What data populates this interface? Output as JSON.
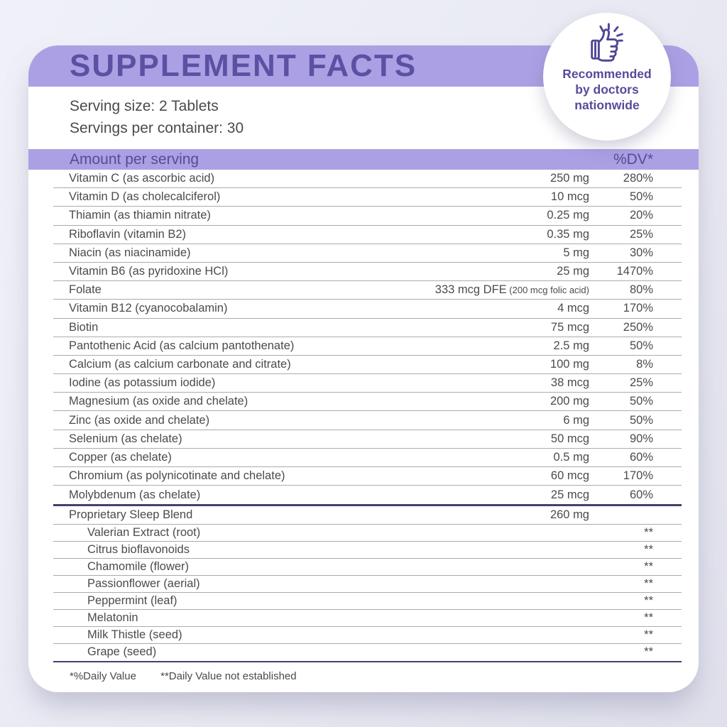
{
  "header": {
    "title": "SUPPLEMENT FACTS"
  },
  "badge": {
    "icon": "thumbs-up-icon",
    "lines": [
      "Recommended",
      "by doctors",
      "nationwide"
    ]
  },
  "serving": {
    "size_line": "Serving size: 2 Tablets",
    "per_container_line": "Servings per container: 30"
  },
  "table": {
    "header": {
      "amount_label": "Amount per serving",
      "dv_label": "%DV*"
    },
    "rows": [
      {
        "name": "Vitamin C (as ascorbic acid)",
        "amount": "250 mg",
        "dv": "280%"
      },
      {
        "name": "Vitamin D (as cholecalciferol)",
        "amount": "10 mcg",
        "dv": "50%"
      },
      {
        "name": "Thiamin (as thiamin nitrate)",
        "amount": "0.25 mg",
        "dv": "20%"
      },
      {
        "name": "Riboflavin (vitamin B2)",
        "amount": "0.35 mg",
        "dv": "25%"
      },
      {
        "name": "Niacin (as niacinamide)",
        "amount": "5 mg",
        "dv": "30%"
      },
      {
        "name": "Vitamin B6 (as pyridoxine HCl)",
        "amount": "25 mg",
        "dv": "1470%"
      },
      {
        "name": "Folate",
        "amount": "333 mcg DFE",
        "amount_note": " (200 mcg folic acid)",
        "dv": "80%"
      },
      {
        "name": "Vitamin B12 (cyanocobalamin)",
        "amount": "4 mcg",
        "dv": "170%"
      },
      {
        "name": "Biotin",
        "amount": "75 mcg",
        "dv": "250%"
      },
      {
        "name": "Pantothenic Acid (as calcium pantothenate)",
        "amount": "2.5 mg",
        "dv": "50%"
      },
      {
        "name": "Calcium (as calcium carbonate and citrate)",
        "amount": "100 mg",
        "dv": "8%"
      },
      {
        "name": "Iodine (as potassium iodide)",
        "amount": "38 mcg",
        "dv": "25%"
      },
      {
        "name": "Magnesium (as oxide and chelate)",
        "amount": "200 mg",
        "dv": "50%"
      },
      {
        "name": "Zinc (as oxide and chelate)",
        "amount": "6 mg",
        "dv": "50%"
      },
      {
        "name": "Selenium (as chelate)",
        "amount": "50 mcg",
        "dv": "90%"
      },
      {
        "name": "Copper (as chelate)",
        "amount": "0.5 mg",
        "dv": "60%"
      },
      {
        "name": "Chromium (as polynicotinate and chelate)",
        "amount": "60 mcg",
        "dv": "170%"
      },
      {
        "name": "Molybdenum (as chelate)",
        "amount": "25 mcg",
        "dv": "60%"
      }
    ],
    "blend": {
      "name": "Proprietary Sleep Blend",
      "amount": "260 mg",
      "items": [
        {
          "name": "Valerian Extract (root)",
          "dv": "**"
        },
        {
          "name": "Citrus bioflavonoids",
          "dv": "**"
        },
        {
          "name": "Chamomile (flower)",
          "dv": "**"
        },
        {
          "name": "Passionflower (aerial)",
          "dv": "**"
        },
        {
          "name": "Peppermint (leaf)",
          "dv": "**"
        },
        {
          "name": "Melatonin",
          "dv": "**"
        },
        {
          "name": "Milk Thistle (seed)",
          "dv": "**"
        },
        {
          "name": "Grape (seed)",
          "dv": "**"
        }
      ]
    }
  },
  "footnotes": {
    "dv_note": "*%Daily Value",
    "not_established": "**Daily Value not established"
  },
  "colors": {
    "accent_light": "#aba0e4",
    "accent_dark": "#5b51a2",
    "badge_text": "#564c9b",
    "thin_rule": "#ababaf",
    "thick_rule": "#45406b",
    "body_text": "#4b4b4b",
    "card_bg": "#ffffff",
    "page_bg": "#e9ebf4"
  }
}
